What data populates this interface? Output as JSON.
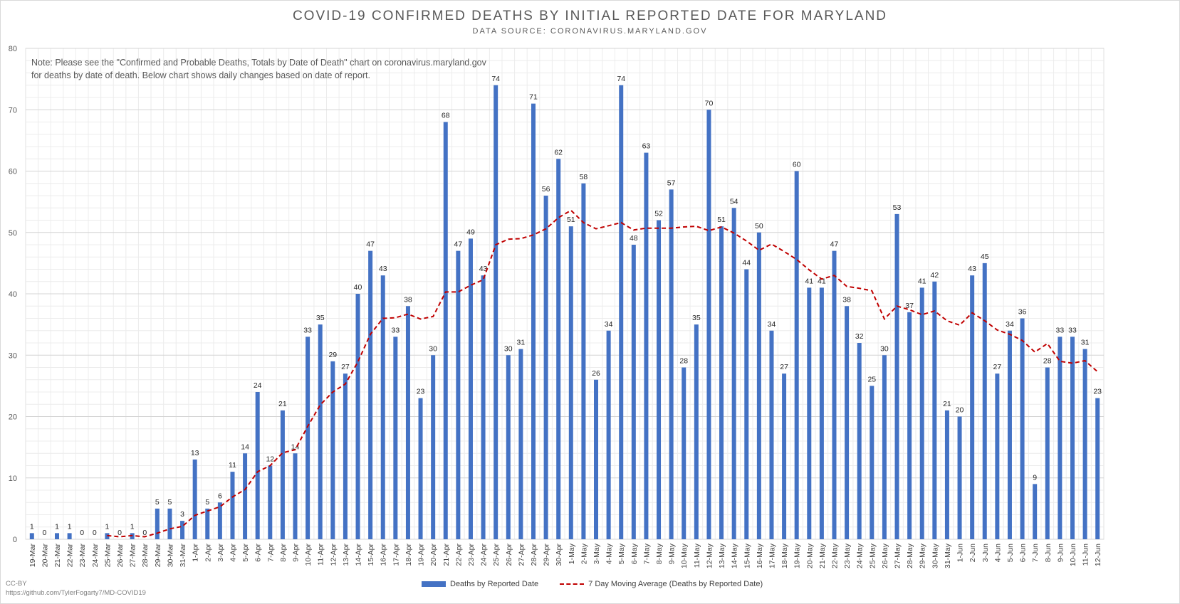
{
  "title": "COVID-19 CONFIRMED DEATHS BY INITIAL REPORTED DATE FOR MARYLAND",
  "subtitle": "DATA SOURCE: CORONAVIRUS.MARYLAND.GOV",
  "note": "Note: Please see the \"Confirmed and Probable Deaths, Totals by Date of Death\" chart on coronavirus.maryland.gov\nfor deaths by date of death. Below chart shows daily changes based on date of report.",
  "credit": {
    "license": "CC-BY",
    "url": "https://github.com/TylerFogarty7/MD-COVID19"
  },
  "colors": {
    "bar": "#4472c4",
    "moving_average": "#c00000",
    "grid": "#e0e0e0",
    "text": "#595959"
  },
  "chart_data": {
    "type": "bar",
    "title": "COVID-19 CONFIRMED DEATHS BY INITIAL REPORTED DATE FOR MARYLAND",
    "ylim": [
      0,
      80
    ],
    "yticks": [
      0,
      10,
      20,
      30,
      40,
      50,
      60,
      70,
      80
    ],
    "grid": true,
    "legend_position": "bottom",
    "categories": [
      "19-Mar",
      "20-Mar",
      "21-Mar",
      "22-Mar",
      "23-Mar",
      "24-Mar",
      "25-Mar",
      "26-Mar",
      "27-Mar",
      "28-Mar",
      "29-Mar",
      "30-Mar",
      "31-Mar",
      "1-Apr",
      "2-Apr",
      "3-Apr",
      "4-Apr",
      "5-Apr",
      "6-Apr",
      "7-Apr",
      "8-Apr",
      "9-Apr",
      "10-Apr",
      "11-Apr",
      "12-Apr",
      "13-Apr",
      "14-Apr",
      "15-Apr",
      "16-Apr",
      "17-Apr",
      "18-Apr",
      "19-Apr",
      "20-Apr",
      "21-Apr",
      "22-Apr",
      "23-Apr",
      "24-Apr",
      "25-Apr",
      "26-Apr",
      "27-Apr",
      "28-Apr",
      "29-Apr",
      "30-Apr",
      "1-May",
      "2-May",
      "3-May",
      "4-May",
      "5-May",
      "6-May",
      "7-May",
      "8-May",
      "9-May",
      "10-May",
      "11-May",
      "12-May",
      "13-May",
      "14-May",
      "15-May",
      "16-May",
      "17-May",
      "18-May",
      "19-May",
      "20-May",
      "21-May",
      "22-May",
      "23-May",
      "24-May",
      "25-May",
      "26-May",
      "27-May",
      "28-May",
      "29-May",
      "30-May",
      "31-May",
      "1-Jun",
      "2-Jun",
      "3-Jun",
      "4-Jun",
      "5-Jun",
      "6-Jun",
      "7-Jun",
      "8-Jun",
      "9-Jun",
      "10-Jun",
      "11-Jun",
      "12-Jun"
    ],
    "series": [
      {
        "name": "Deaths by Reported Date",
        "type": "bar",
        "values": [
          1,
          0,
          1,
          1,
          0,
          0,
          1,
          0,
          1,
          0,
          5,
          5,
          3,
          13,
          5,
          6,
          11,
          14,
          24,
          12,
          21,
          14,
          33,
          35,
          29,
          27,
          40,
          47,
          43,
          33,
          38,
          23,
          30,
          68,
          47,
          49,
          43,
          74,
          30,
          31,
          71,
          56,
          62,
          51,
          58,
          26,
          34,
          74,
          48,
          63,
          52,
          57,
          28,
          35,
          70,
          51,
          54,
          44,
          50,
          34,
          27,
          60,
          41,
          41,
          47,
          38,
          32,
          25,
          30,
          53,
          37,
          41,
          42,
          21,
          20,
          43,
          45,
          27,
          34,
          36,
          9,
          28,
          33,
          33,
          31,
          23
        ]
      },
      {
        "name": "7 Day Moving Average (Deaths by Reported Date)",
        "type": "line",
        "values": [
          null,
          null,
          null,
          null,
          null,
          null,
          0.6,
          0.4,
          0.6,
          0.4,
          1.0,
          1.7,
          2.1,
          3.9,
          4.6,
          5.3,
          6.9,
          8.1,
          11.0,
          12.0,
          14.1,
          14.6,
          18.4,
          21.9,
          24.0,
          25.3,
          28.9,
          33.4,
          36.0,
          36.1,
          36.7,
          35.9,
          36.3,
          40.3,
          40.3,
          41.4,
          42.3,
          48.0,
          48.9,
          49.0,
          49.6,
          50.6,
          52.4,
          53.6,
          51.6,
          50.6,
          51.1,
          51.6,
          50.4,
          50.7,
          50.7,
          50.7,
          50.9,
          51.0,
          50.3,
          50.9,
          49.9,
          48.6,
          47.1,
          48.1,
          46.9,
          45.6,
          43.9,
          42.4,
          43.0,
          41.2,
          40.9,
          40.5,
          35.9,
          38.0,
          37.4,
          36.6,
          37.2,
          35.6,
          34.9,
          36.9,
          35.6,
          34.1,
          33.4,
          32.4,
          30.5,
          31.9,
          29.0,
          28.7,
          29.1,
          27.3
        ]
      }
    ],
    "bar_labels": [
      "1",
      "0",
      "1",
      "1",
      "0",
      "0",
      "1",
      "0",
      "1",
      "0",
      "5",
      "5",
      "3",
      "13",
      "5",
      "6",
      "11",
      "14",
      "24",
      "12",
      "21",
      "14",
      "33",
      "35",
      "29",
      "27",
      "40",
      "47",
      "43",
      "33",
      "38",
      "23",
      "30",
      "68",
      "47",
      "49",
      "43",
      "74",
      "30",
      "31",
      "71",
      "56",
      "62",
      "51",
      "58",
      "26",
      "34",
      "74",
      "48",
      "63",
      "52",
      "57",
      "28",
      "35",
      "70",
      "51",
      "54",
      "44",
      "50",
      "34",
      "27",
      "60",
      "41",
      "41",
      "47",
      "38",
      "32",
      "25",
      "30",
      "53",
      "37",
      "41",
      "42",
      "21",
      "20",
      "43",
      "45",
      "27",
      "34",
      "36",
      "9",
      "28",
      "33",
      "33",
      "31",
      "23"
    ]
  },
  "legend": {
    "bar_label": "Deaths by Reported Date",
    "line_label": "7 Day Moving Average (Deaths by Reported Date)"
  }
}
